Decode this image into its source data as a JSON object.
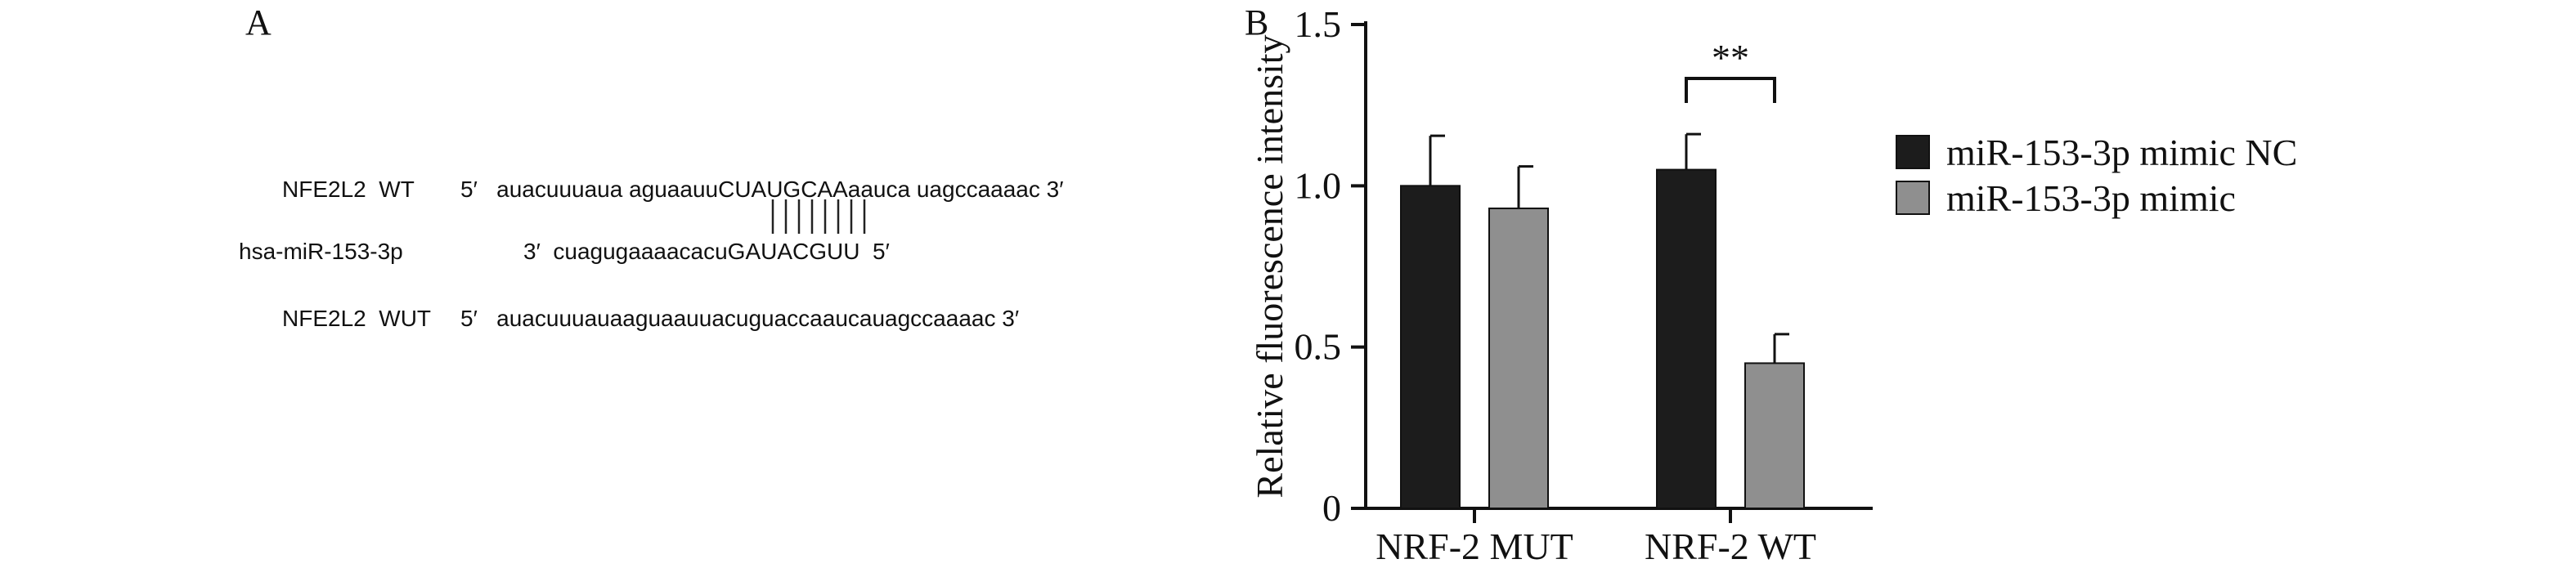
{
  "panel_a": {
    "label": "A",
    "rows": [
      {
        "name": "NFE2L2  WT",
        "seq": "5′   auacuuuaua aguaauuCUAUGCAAaauca uagccaaaac 3′"
      },
      {
        "name": "hsa-miR-153-3p",
        "seq": "3′  cuagugaaaacacuGAUACGUU  5′"
      },
      {
        "name": "NFE2L2  WUT",
        "seq": "5′   auacuuuauaaguaauuacuguaccaaucauagccaaaac 3′"
      }
    ],
    "pairing_marks": 8
  },
  "panel_b": {
    "label": "B"
  },
  "chart_data": {
    "type": "bar",
    "categories": [
      "NRF-2 MUT",
      "NRF-2 WT"
    ],
    "series": [
      {
        "name": "miR-153-3p mimic NC",
        "values": [
          1.0,
          1.05
        ],
        "errors": [
          0.155,
          0.11
        ],
        "color": "#1c1c1c"
      },
      {
        "name": "miR-153-3p mimic",
        "values": [
          0.93,
          0.45
        ],
        "errors": [
          0.13,
          0.09
        ],
        "color": "#8f8f8f"
      }
    ],
    "ylabel": "Relative fluorescence intensity",
    "xlabel": "",
    "ylim": [
      0,
      1.5
    ],
    "yticks": [
      0,
      0.5,
      1.0,
      1.5
    ],
    "ytick_labels": [
      "0",
      "0.5",
      "1.0",
      "1.5"
    ],
    "significance": {
      "label": "**",
      "category": "NRF-2 WT"
    },
    "legend_position": "right",
    "grid": false
  }
}
